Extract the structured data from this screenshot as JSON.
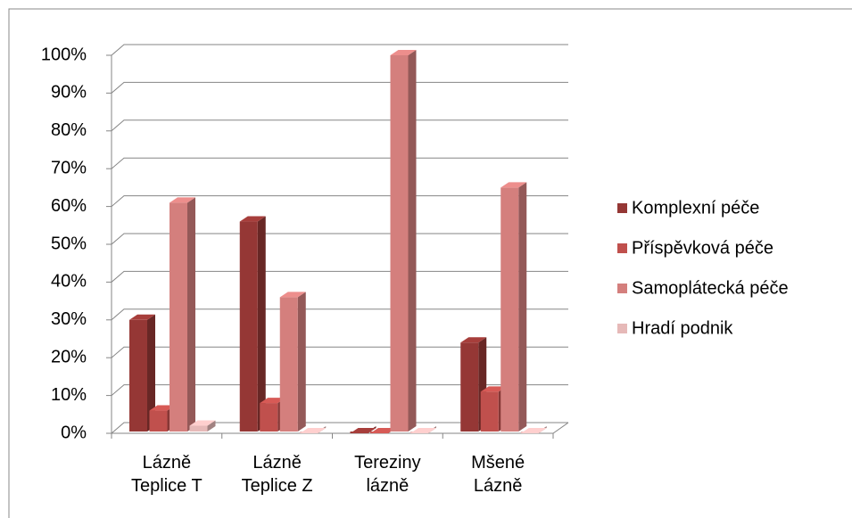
{
  "chart_data": {
    "type": "bar3d",
    "categories": [
      "Lázně Teplice T",
      "Lázně Teplice Z",
      "Tereziny lázně",
      "Mšené Lázně"
    ],
    "series": [
      {
        "name": "Komplexní péče",
        "color": "#953735",
        "values": [
          30,
          56,
          0,
          24
        ]
      },
      {
        "name": "Příspěvková péče",
        "color": "#c0504d",
        "values": [
          6,
          8,
          0,
          11
        ]
      },
      {
        "name": "Samoplátecká péče",
        "color": "#d47f7d",
        "values": [
          61,
          36,
          100,
          65
        ]
      },
      {
        "name": "Hradí podnik",
        "color": "#e6b9b8",
        "values": [
          2,
          0,
          0,
          0
        ]
      }
    ],
    "ylim": [
      0,
      100
    ],
    "yticks": [
      {
        "value": 0,
        "label": "0%"
      },
      {
        "value": 10,
        "label": "10%"
      },
      {
        "value": 20,
        "label": "20%"
      },
      {
        "value": 30,
        "label": "30%"
      },
      {
        "value": 40,
        "label": "40%"
      },
      {
        "value": 50,
        "label": "50%"
      },
      {
        "value": 60,
        "label": "60%"
      },
      {
        "value": 70,
        "label": "70%"
      },
      {
        "value": 80,
        "label": "80%"
      },
      {
        "value": 90,
        "label": "90%"
      },
      {
        "value": 100,
        "label": "100%"
      }
    ],
    "grid": true,
    "legend": "right"
  }
}
